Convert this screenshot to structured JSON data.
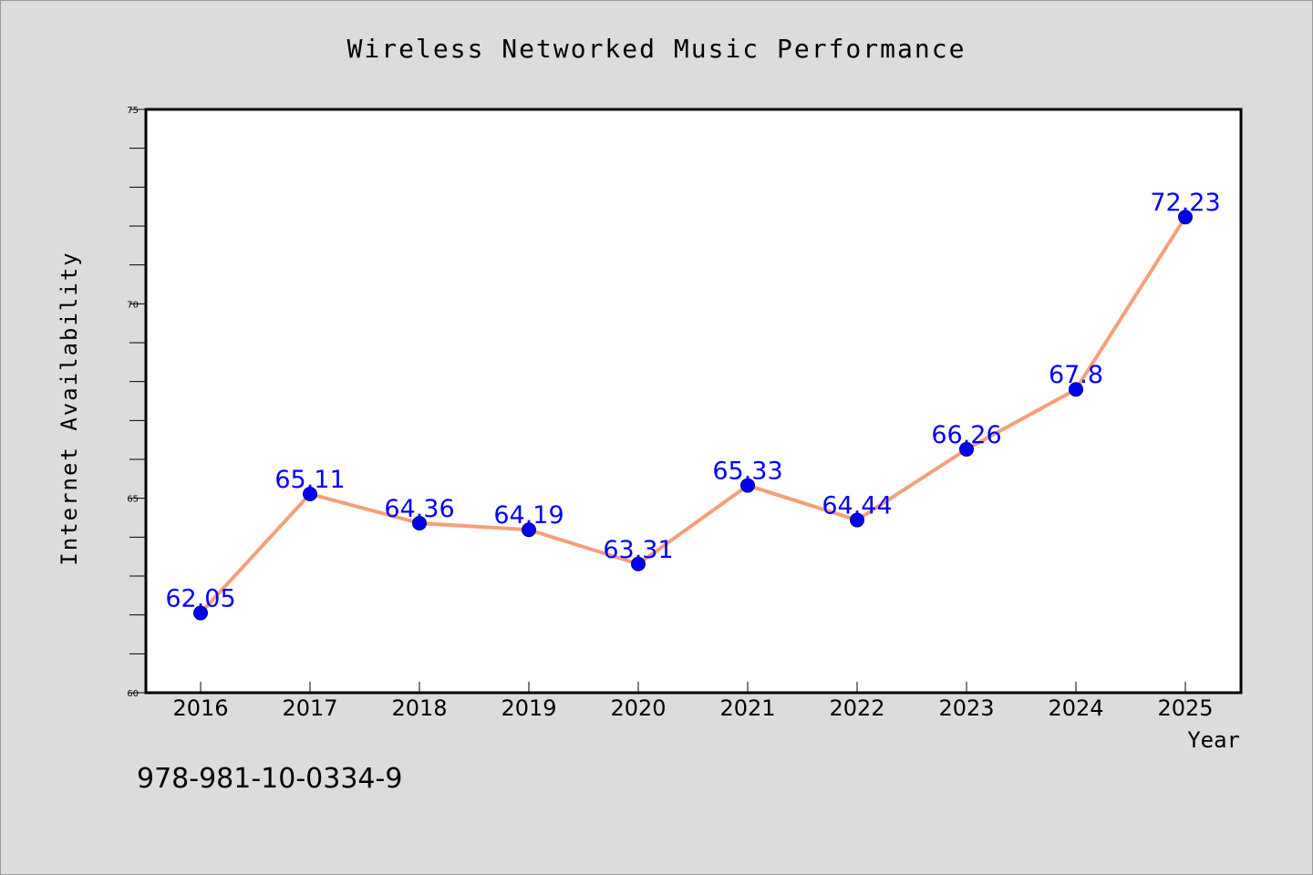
{
  "chart_data": {
    "type": "line",
    "title": "Wireless Networked Music Performance",
    "xlabel": "Year",
    "ylabel": "Internet Availability",
    "categories": [
      "2016",
      "2017",
      "2018",
      "2019",
      "2020",
      "2021",
      "2022",
      "2023",
      "2024",
      "2025"
    ],
    "series": [
      {
        "values": [
          62.05,
          65.11,
          64.36,
          64.19,
          63.31,
          65.33,
          64.44,
          66.26,
          67.8,
          72.23
        ],
        "data_labels": [
          "62.05",
          "65.11",
          "64.36",
          "64.19",
          "63.31",
          "65.33",
          "64.44",
          "66.26",
          "67.8",
          "72.23"
        ]
      }
    ],
    "ylim": [
      60,
      75
    ],
    "yticks": [
      "60",
      "65",
      "70",
      "75"
    ],
    "grid": false,
    "colors": {
      "line": "#f4a07a",
      "marker": "#0000ee",
      "label": "#0000ff",
      "background": "#dcdcdc",
      "plot_background": "#ffffff"
    }
  },
  "footer_text": "978-981-10-0334-9"
}
